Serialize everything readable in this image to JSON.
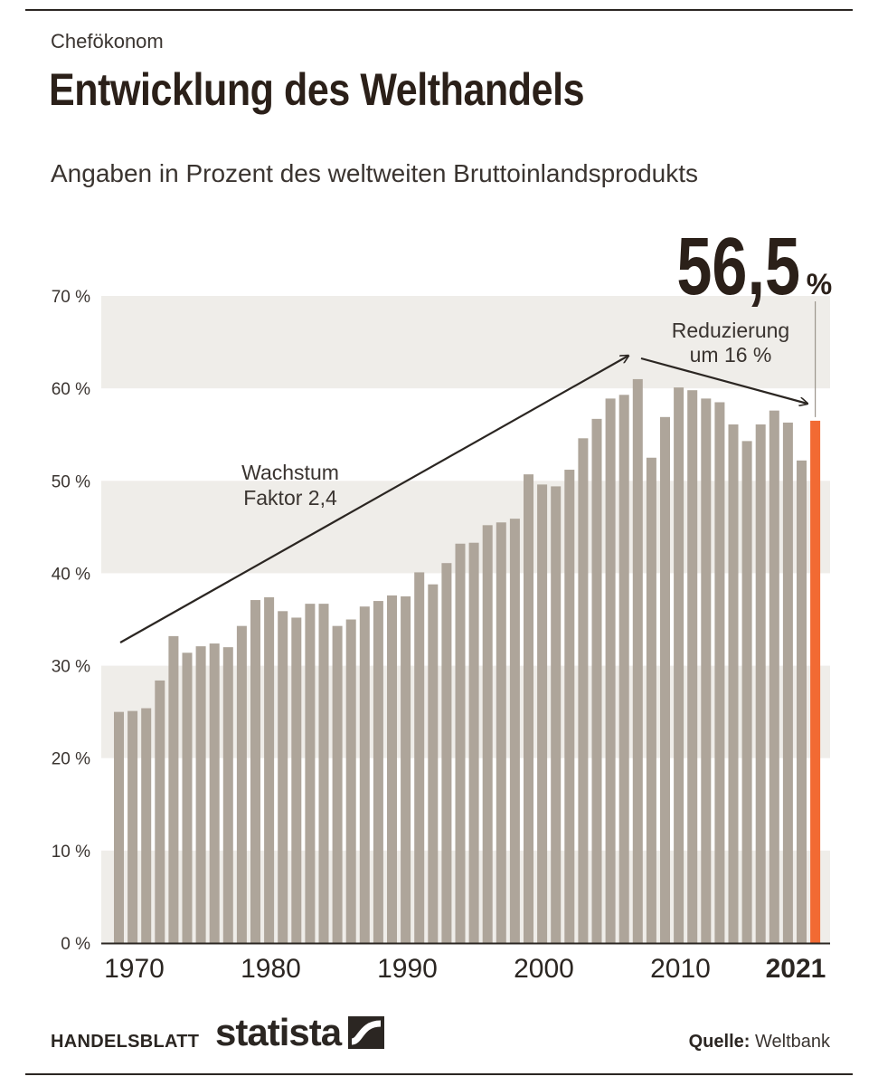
{
  "header": {
    "kicker": "Chefökonom",
    "title": "Entwicklung des Welthandels",
    "subtitle": "Angaben in Prozent des weltweiten Bruttoinlandsprodukts"
  },
  "chart_data": {
    "type": "bar",
    "categories": [
      "1970",
      "1971",
      "1972",
      "1973",
      "1974",
      "1975",
      "1976",
      "1977",
      "1978",
      "1979",
      "1980",
      "1981",
      "1982",
      "1983",
      "1984",
      "1985",
      "1986",
      "1987",
      "1988",
      "1989",
      "1990",
      "1991",
      "1992",
      "1993",
      "1994",
      "1995",
      "1996",
      "1997",
      "1998",
      "1999",
      "2000",
      "2001",
      "2002",
      "2003",
      "2004",
      "2005",
      "2006",
      "2007",
      "2008",
      "2009",
      "2010",
      "2011",
      "2012",
      "2013",
      "2014",
      "2015",
      "2016",
      "2017",
      "2018",
      "2019",
      "2020",
      "2021"
    ],
    "values": [
      25.0,
      25.1,
      25.4,
      28.4,
      33.2,
      31.4,
      32.1,
      32.4,
      32.0,
      34.3,
      37.1,
      37.4,
      35.9,
      35.2,
      36.7,
      36.7,
      34.3,
      35.0,
      36.4,
      37.0,
      37.6,
      37.5,
      40.1,
      38.8,
      41.1,
      43.2,
      43.3,
      45.2,
      45.5,
      45.9,
      50.7,
      49.6,
      49.4,
      51.2,
      54.6,
      56.7,
      58.9,
      59.3,
      61.0,
      52.5,
      56.9,
      60.1,
      59.8,
      58.9,
      58.5,
      56.1,
      54.3,
      56.1,
      57.6,
      56.3,
      52.2,
      56.5
    ],
    "highlight_index": 51,
    "ylim": [
      0,
      70
    ],
    "yticks": [
      0,
      10,
      20,
      30,
      40,
      50,
      60,
      70
    ],
    "ytick_labels": [
      "0 %",
      "10 %",
      "20 %",
      "30 %",
      "40 %",
      "50 %",
      "60 %",
      "70 %"
    ],
    "xtick_labels": [
      "1970",
      "1980",
      "1990",
      "2000",
      "2010",
      "2021"
    ],
    "xtick_years": [
      1970,
      1980,
      1990,
      2000,
      2010,
      2021
    ],
    "xtick_bold_year": 2021,
    "grid": "alternating horizontal bands",
    "colors": {
      "bar": "#aea59a",
      "highlight": "#f26a33",
      "band": "#efede9",
      "text": "#2b2622"
    },
    "value_callout": {
      "number": "56,5",
      "unit": "%"
    },
    "annotations": [
      {
        "text_lines": [
          "Wachstum",
          "Faktor 2,4"
        ]
      },
      {
        "text_lines": [
          "Reduzierung",
          "um 16 %"
        ]
      }
    ]
  },
  "footer": {
    "publisher": "HANDELSBLATT",
    "brand": "statista",
    "source_label": "Quelle:",
    "source_value": "Weltbank"
  }
}
